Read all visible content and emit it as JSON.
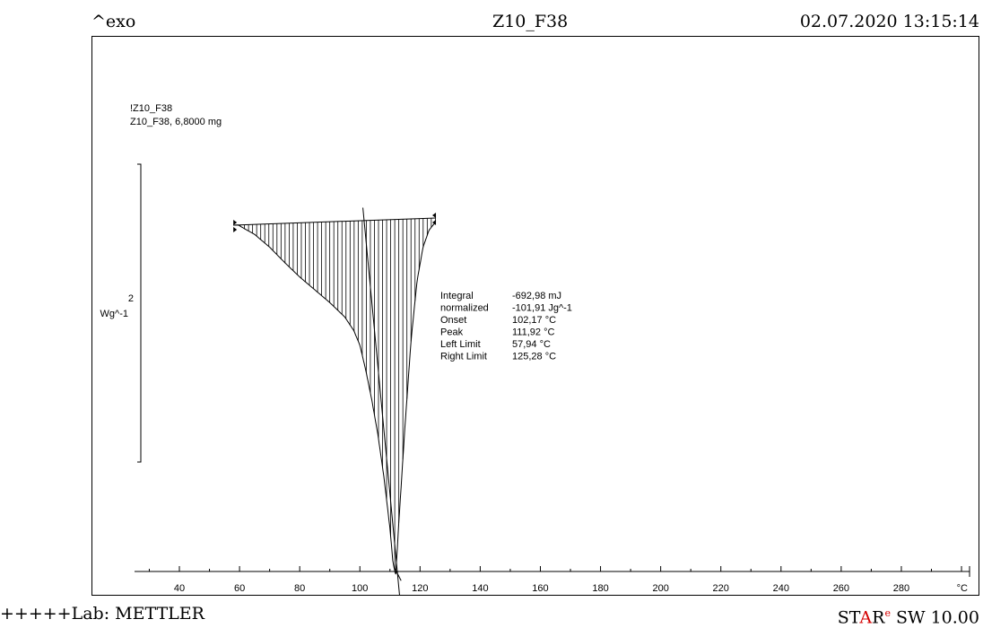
{
  "header": {
    "exo": "^exo",
    "title": "Z10_F38",
    "datetime": "02.07.2020 13:15:14"
  },
  "footer": {
    "lab": "+++++Lab: METTLER",
    "software_star": "ST",
    "software_a": "A",
    "software_r": "R",
    "software_e": "e",
    "software_rest": " SW 10.00"
  },
  "colors": {
    "brand_red": "#d40000",
    "line": "#000000"
  },
  "sample": {
    "curve_name": "!Z10_F38",
    "description": "Z10_F38, 6,8000 mg"
  },
  "scale_bar": {
    "value": "2",
    "unit": "Wg^-1"
  },
  "results": [
    {
      "label": "Integral",
      "value": "-692,98 mJ"
    },
    {
      "label": "  normalized",
      "value": "-101,91 Jg^-1"
    },
    {
      "label": "Onset",
      "value": "102,17 °C"
    },
    {
      "label": "Peak",
      "value": "111,92 °C"
    },
    {
      "label": "Left Limit",
      "value": "57,94 °C"
    },
    {
      "label": "Right Limit",
      "value": "125,28 °C"
    }
  ],
  "chart_data": {
    "type": "line",
    "xlabel": "°C",
    "xlim": [
      25,
      305
    ],
    "xticks": [
      40,
      60,
      80,
      100,
      120,
      140,
      160,
      180,
      200,
      220,
      240,
      260,
      280
    ],
    "left_limit": 57.94,
    "right_limit": 125.28,
    "onset": 102.17,
    "peak": 111.92,
    "baseline": {
      "x": [
        57.94,
        125.28
      ],
      "y": [
        0.0,
        0.0
      ]
    },
    "curve": {
      "x": [
        57.94,
        60,
        65,
        70,
        75,
        80,
        85,
        90,
        95,
        98,
        100,
        102,
        104,
        106,
        108,
        110,
        111,
        111.92,
        113,
        115,
        117,
        119,
        121,
        123,
        125.28
      ],
      "y": [
        0.0,
        -0.05,
        -0.15,
        -0.3,
        -0.48,
        -0.65,
        -0.8,
        -0.95,
        -1.12,
        -1.28,
        -1.45,
        -1.75,
        -2.1,
        -2.5,
        -3.0,
        -3.6,
        -4.0,
        -4.15,
        -3.5,
        -2.4,
        -1.4,
        -0.7,
        -0.3,
        -0.1,
        0.0
      ]
    },
    "onset_tangent": {
      "x": [
        101,
        113.5
      ],
      "y": [
        0.1,
        -4.5
      ]
    }
  }
}
